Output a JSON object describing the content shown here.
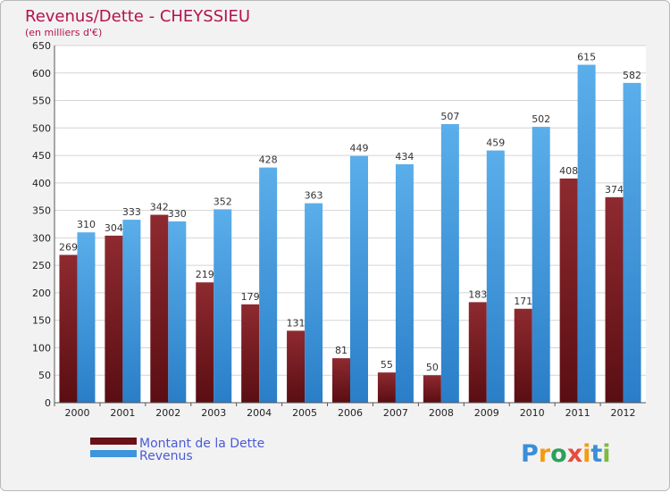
{
  "chart_data": {
    "type": "bar",
    "title": "Revenus/Dette - CHEYSSIEU",
    "subtitle": "(en milliers d'€)",
    "categories": [
      "2000",
      "2001",
      "2002",
      "2003",
      "2004",
      "2005",
      "2006",
      "2007",
      "2008",
      "2009",
      "2010",
      "2011",
      "2012"
    ],
    "series": [
      {
        "name": "Montant de la Dette",
        "color": "#7a1a1f",
        "values": [
          269,
          304,
          342,
          219,
          179,
          131,
          81,
          55,
          50,
          183,
          171,
          408,
          374
        ]
      },
      {
        "name": "Revenus",
        "color": "#3d95dc",
        "values": [
          310,
          333,
          330,
          352,
          428,
          363,
          449,
          434,
          507,
          459,
          502,
          615,
          582
        ]
      }
    ],
    "ylim": [
      0,
      650
    ],
    "yticks": [
      0,
      50,
      100,
      150,
      200,
      250,
      300,
      350,
      400,
      450,
      500,
      550,
      600,
      650
    ],
    "grid": true,
    "legend_position": "bottom-left"
  },
  "logo": {
    "letters": [
      "P",
      "r",
      "o",
      "x",
      "i",
      "t",
      "i"
    ],
    "colors": [
      "#3a8fd6",
      "#f39c12",
      "#2ca05a",
      "#e74c3c",
      "#f39c12",
      "#3a8fd6",
      "#7dbb3c"
    ]
  }
}
